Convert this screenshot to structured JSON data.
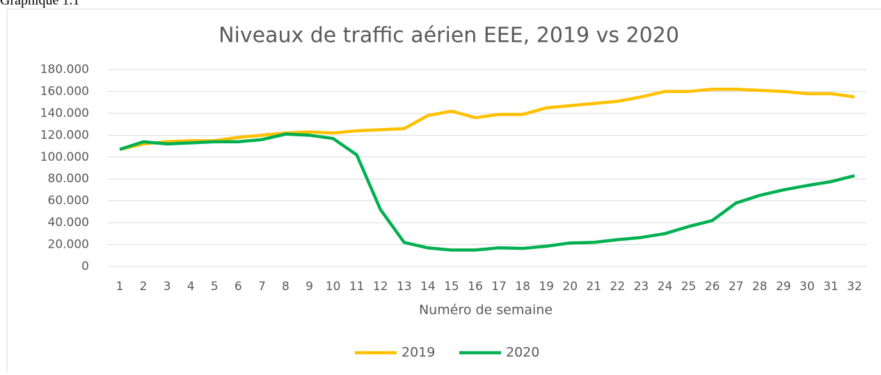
{
  "caption": "Graphique 1.1",
  "chart_data": {
    "type": "line",
    "title": "Niveaux de traffic aérien EEE, 2019 vs 2020",
    "x_label": "Numéro de semaine",
    "categories": [
      "1",
      "2",
      "3",
      "4",
      "5",
      "6",
      "7",
      "8",
      "9",
      "10",
      "11",
      "12",
      "13",
      "14",
      "15",
      "16",
      "17",
      "18",
      "19",
      "20",
      "21",
      "22",
      "23",
      "24",
      "25",
      "26",
      "27",
      "28",
      "29",
      "30",
      "31",
      "32"
    ],
    "series": [
      {
        "name": "2019",
        "color": "#ffc000",
        "values": [
          107000,
          112000,
          114000,
          115000,
          115000,
          118000,
          120000,
          122000,
          123000,
          122000,
          124000,
          125000,
          126000,
          138000,
          142000,
          136000,
          139000,
          139000,
          145000,
          147000,
          149000,
          151000,
          155000,
          160000,
          160000,
          162000,
          162000,
          161000,
          160000,
          158000,
          158000,
          155000
        ]
      },
      {
        "name": "2020",
        "color": "#00b050",
        "values": [
          107000,
          114000,
          112000,
          113000,
          114000,
          114000,
          116000,
          121000,
          120000,
          117000,
          102000,
          52000,
          22000,
          17000,
          15000,
          15000,
          17000,
          16500,
          18500,
          21500,
          22000,
          24500,
          26500,
          30000,
          36500,
          42000,
          58000,
          65000,
          70000,
          74000,
          77500,
          83000
        ]
      }
    ],
    "ylim": [
      0,
      180000
    ],
    "yticks": [
      0,
      {
        "value": 20000,
        "label": "20.000"
      },
      {
        "value": 40000,
        "label": "40.000"
      },
      {
        "value": 60000,
        "label": "60.000"
      },
      {
        "value": 80000,
        "label": "80.000"
      },
      {
        "value": 100000,
        "label": "100.000"
      },
      {
        "value": 120000,
        "label": "120.000"
      },
      {
        "value": 140000,
        "label": "140.000"
      },
      {
        "value": 160000,
        "label": "160.000"
      },
      {
        "value": 180000,
        "label": "180.000"
      }
    ],
    "grid": true,
    "legend": "bottom"
  }
}
